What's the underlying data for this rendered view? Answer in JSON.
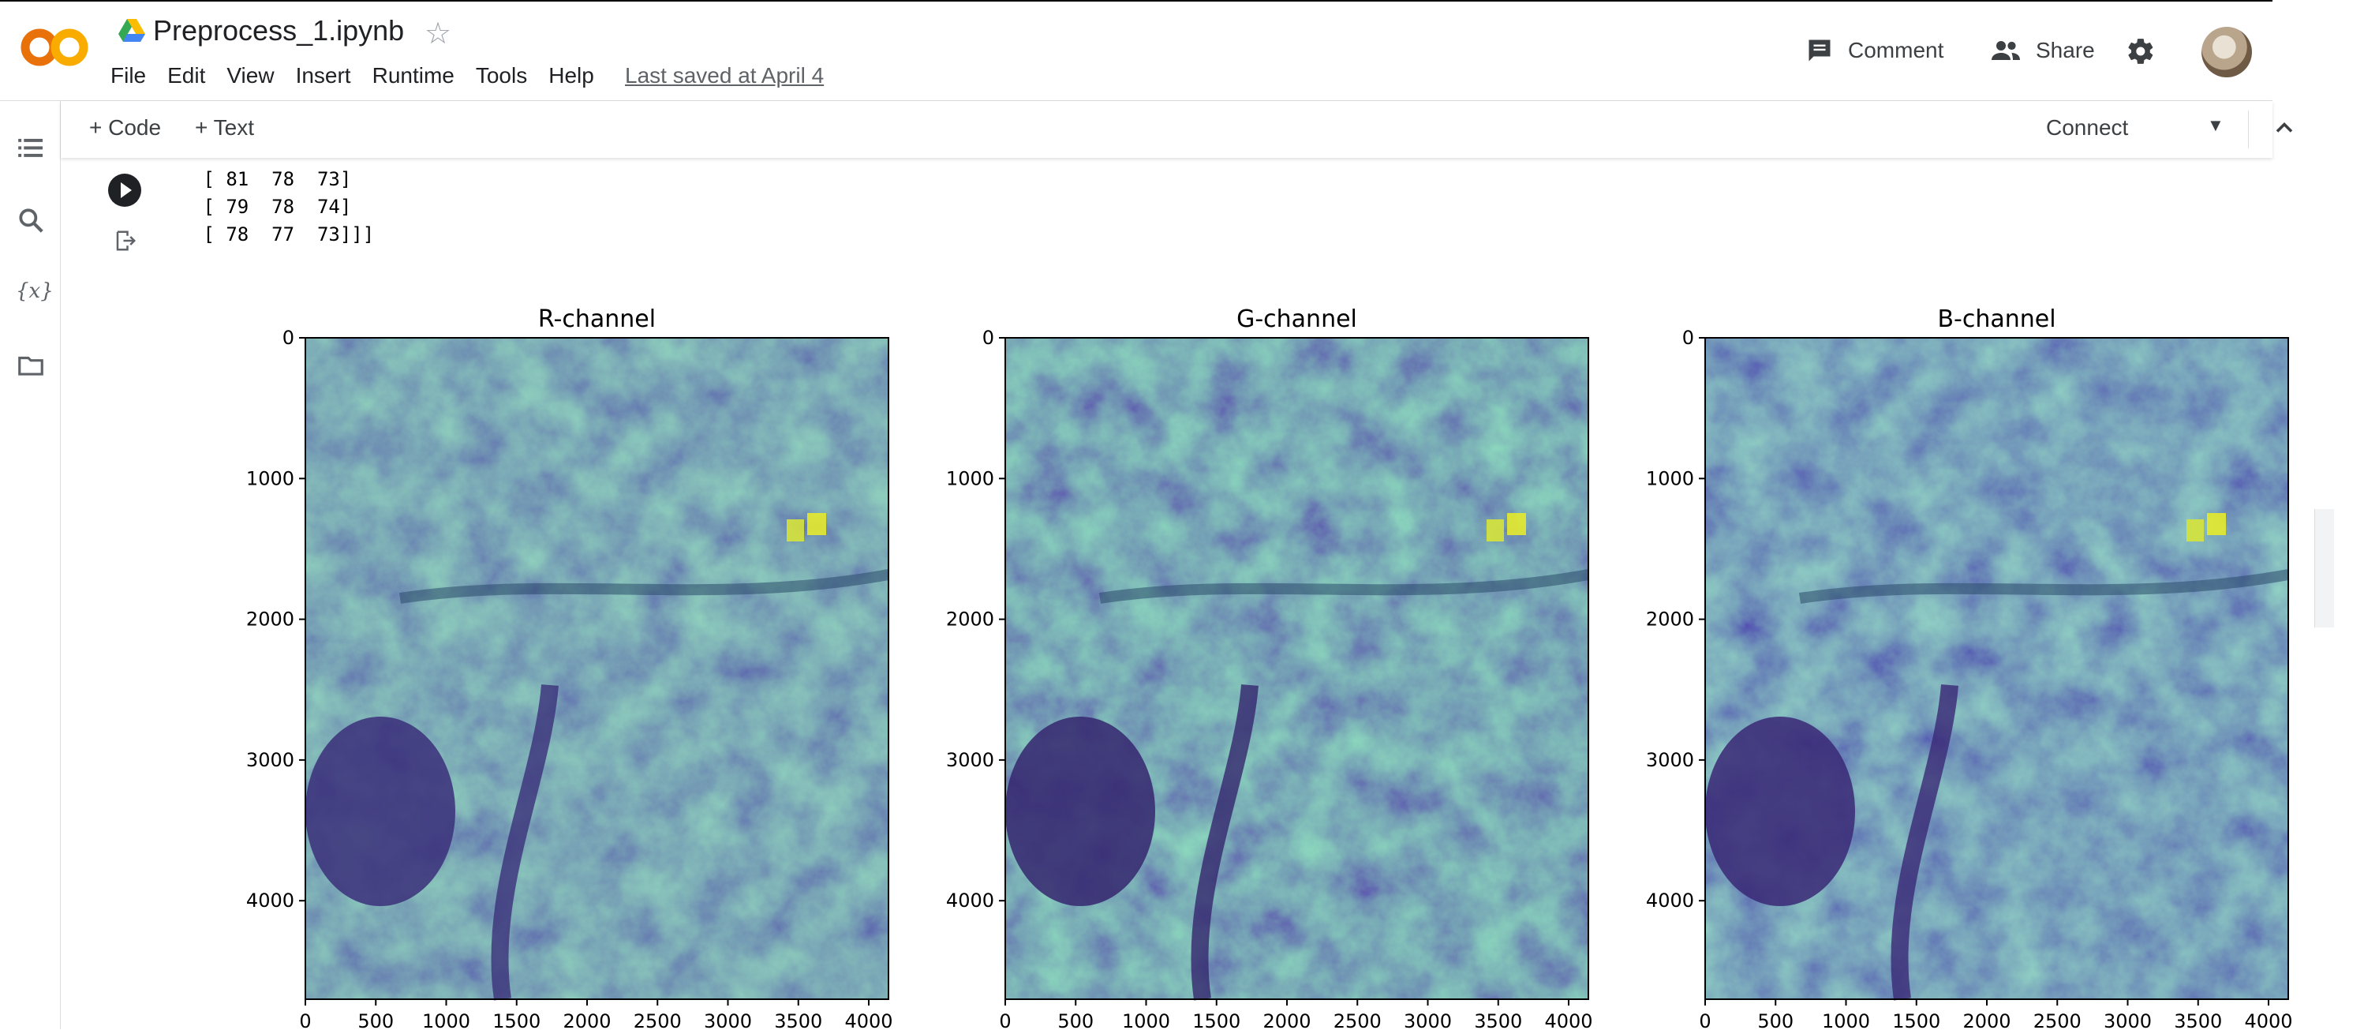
{
  "header": {
    "doc_title": "Preprocess_1.ipynb",
    "menu": [
      "File",
      "Edit",
      "View",
      "Insert",
      "Runtime",
      "Tools",
      "Help"
    ],
    "last_saved": "Last saved at April 4",
    "comment_label": "Comment",
    "share_label": "Share"
  },
  "toolbar": {
    "code_label": "+ Code",
    "text_label": "+ Text",
    "connect_label": "Connect"
  },
  "cell": {
    "stdout_lines": [
      " [ 81  78  73]",
      " [ 79  78  74]",
      " [ 78  77  73]]]"
    ]
  },
  "colors": {
    "colab_orange": "#F9AB00",
    "colab_dark_orange": "#E8710A"
  },
  "chart_data": [
    {
      "type": "heatmap",
      "title": "R-channel",
      "xticks": [
        0,
        500,
        1000,
        1500,
        2000,
        2500,
        3000,
        3500,
        4000
      ],
      "yticks": [
        0,
        1000,
        2000,
        3000,
        4000
      ],
      "xlim": [
        0,
        4140
      ],
      "ylim": [
        4700,
        0
      ],
      "colormap": "viridis"
    },
    {
      "type": "heatmap",
      "title": "G-channel",
      "xticks": [
        0,
        500,
        1000,
        1500,
        2000,
        2500,
        3000,
        3500,
        4000
      ],
      "yticks": [
        0,
        1000,
        2000,
        3000,
        4000
      ],
      "xlim": [
        0,
        4140
      ],
      "ylim": [
        4700,
        0
      ],
      "colormap": "viridis"
    },
    {
      "type": "heatmap",
      "title": "B-channel",
      "xticks": [
        0,
        500,
        1000,
        1500,
        2000,
        2500,
        3000,
        3500,
        4000
      ],
      "yticks": [
        0,
        1000,
        2000,
        3000,
        4000
      ],
      "xlim": [
        0,
        4140
      ],
      "ylim": [
        4700,
        0
      ],
      "colormap": "viridis"
    }
  ]
}
